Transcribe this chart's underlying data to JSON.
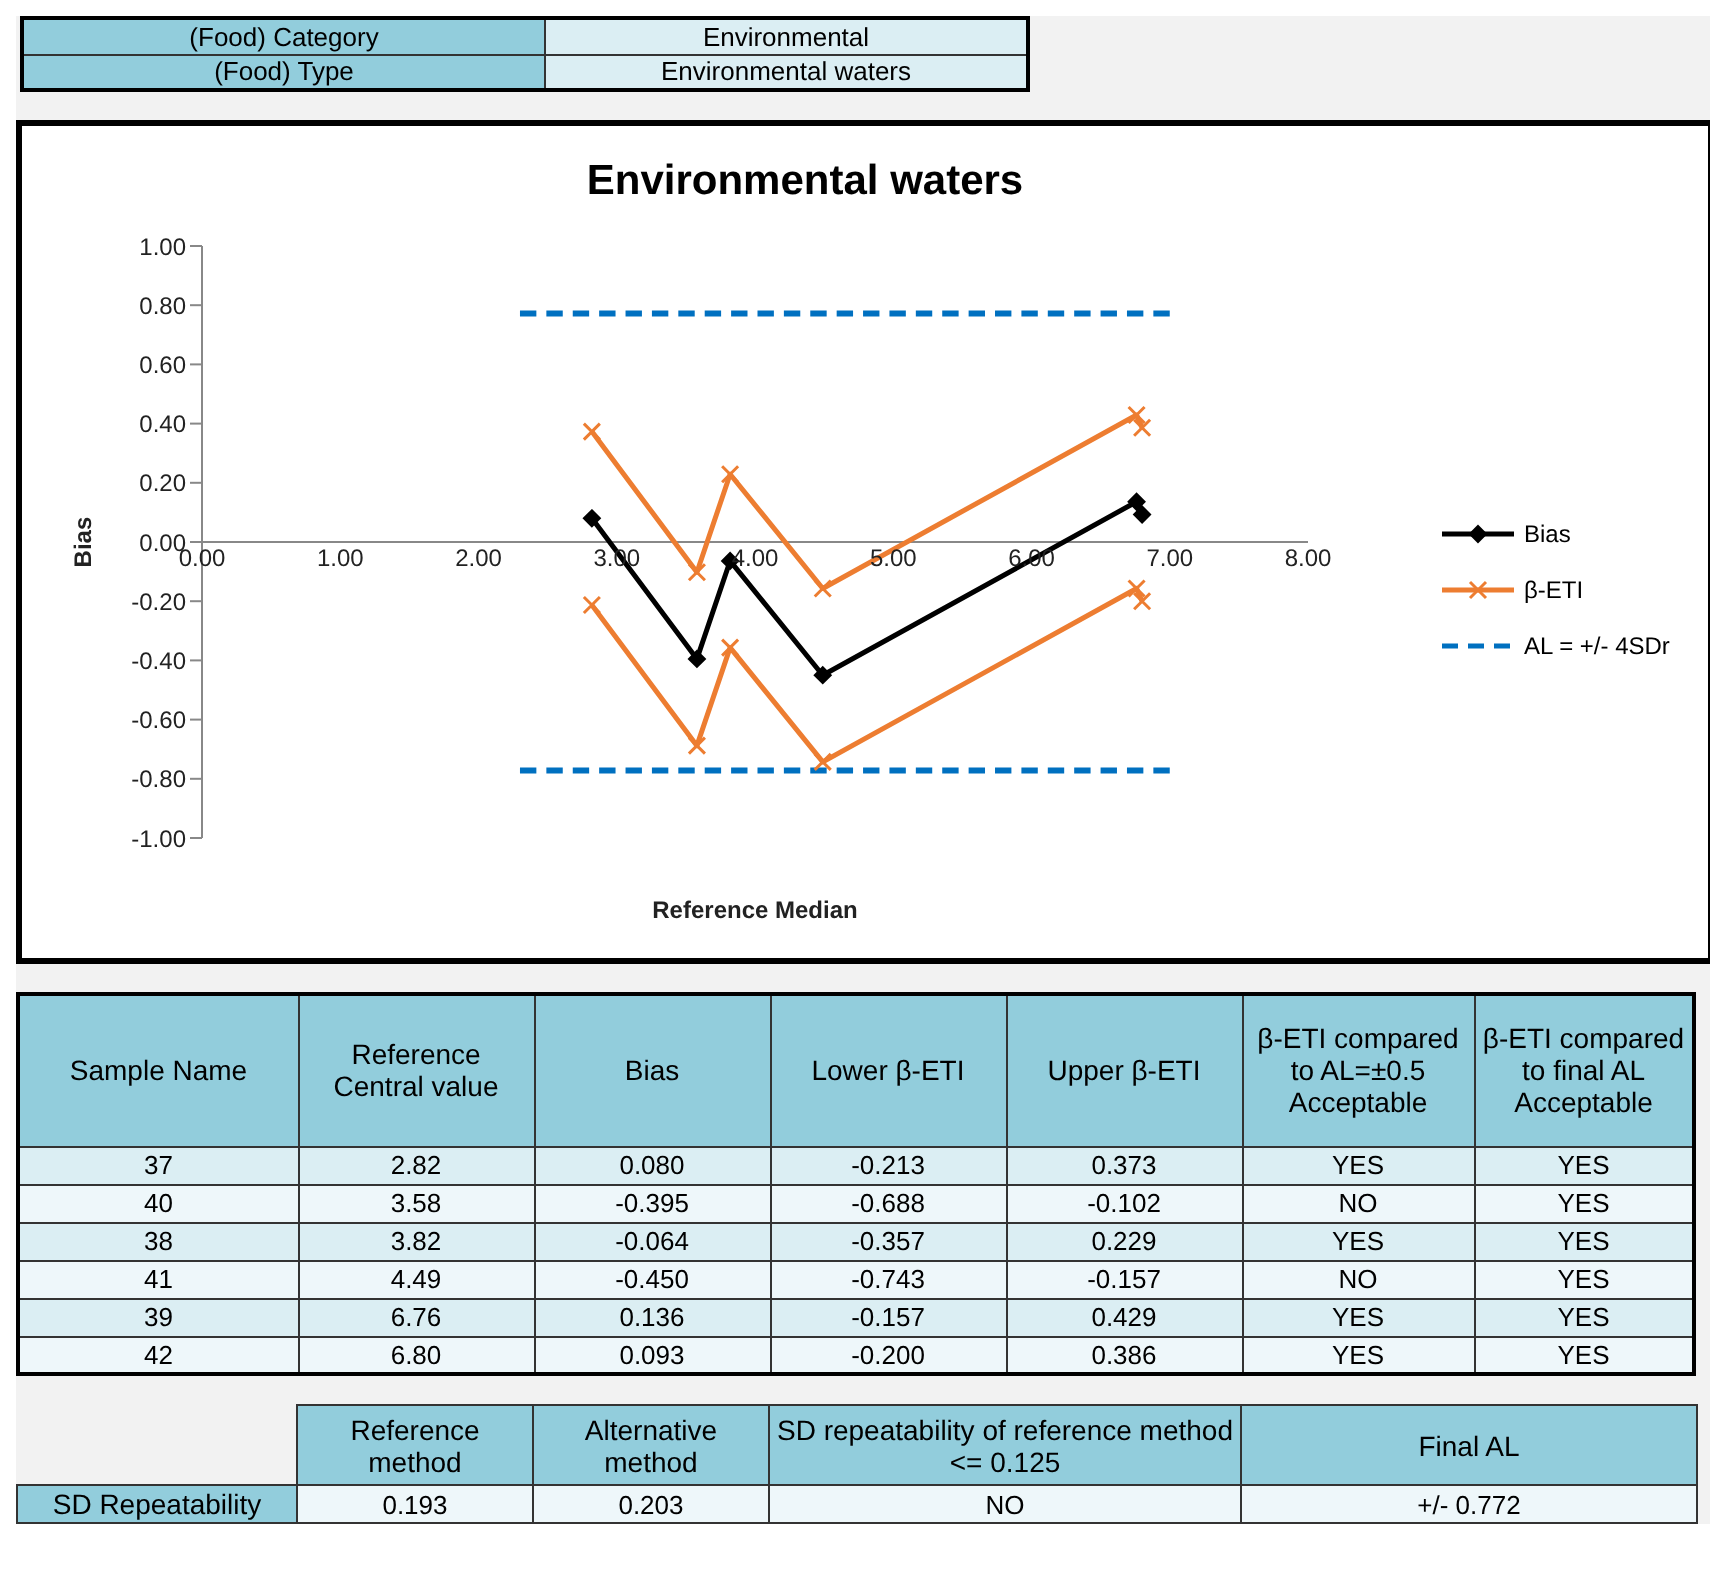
{
  "chart_data": {
    "type": "line",
    "title": "Environmental waters",
    "xlabel": "Reference Median",
    "ylabel": "Bias",
    "xlim": [
      0,
      8
    ],
    "xticks": [
      {
        "value": 0,
        "label": "0.00"
      },
      {
        "value": 1,
        "label": "1.00"
      },
      {
        "value": 2,
        "label": "2.00"
      },
      {
        "value": 3,
        "label": "3.00"
      },
      {
        "value": 4,
        "label": "4.00"
      },
      {
        "value": 5,
        "label": "5.00"
      },
      {
        "value": 6,
        "label": "6.00"
      },
      {
        "value": 7,
        "label": "7.00"
      },
      {
        "value": 8,
        "label": "8.00"
      }
    ],
    "ylim": [
      -1,
      1
    ],
    "yticks": [
      {
        "value": -1,
        "label": "-1.00"
      },
      {
        "value": -0.8,
        "label": "-0.80"
      },
      {
        "value": -0.6,
        "label": "-0.60"
      },
      {
        "value": -0.4,
        "label": "-0.40"
      },
      {
        "value": -0.2,
        "label": "-0.20"
      },
      {
        "value": 0,
        "label": "0.00"
      },
      {
        "value": 0.2,
        "label": "0.20"
      },
      {
        "value": 0.4,
        "label": "0.40"
      },
      {
        "value": 0.6,
        "label": "0.60"
      },
      {
        "value": 0.8,
        "label": "0.80"
      },
      {
        "value": 1,
        "label": "1.00"
      }
    ],
    "legend": "right",
    "grid": false,
    "series": [
      {
        "name": "Bias",
        "color": "#000000",
        "marker": "diamond",
        "x": [
          2.82,
          3.58,
          3.82,
          4.49,
          6.76,
          6.8
        ],
        "values": [
          0.08,
          -0.395,
          -0.064,
          -0.45,
          0.136,
          0.093
        ]
      },
      {
        "name": "β-ETI",
        "color": "#ed7d31",
        "marker": "cross",
        "x": [
          2.82,
          3.58,
          3.82,
          4.49,
          6.76,
          6.8
        ],
        "values": [
          0.373,
          -0.102,
          0.229,
          -0.157,
          0.429,
          0.386
        ]
      },
      {
        "color": "#ed7d31",
        "marker": "cross",
        "x": [
          2.82,
          3.58,
          3.82,
          4.49,
          6.76,
          6.8
        ],
        "values": [
          -0.213,
          -0.688,
          -0.357,
          -0.743,
          -0.157,
          -0.2
        ]
      },
      {
        "name": "AL = +/- 4SDr",
        "color": "#0070c0",
        "marker": "none",
        "line_style": "dashed",
        "x": [
          2.3,
          7.0
        ],
        "values": [
          0.772,
          0.772
        ]
      },
      {
        "color": "#0070c0",
        "marker": "none",
        "line_style": "dashed",
        "x": [
          2.3,
          7.0
        ],
        "values": [
          -0.772,
          -0.772
        ]
      }
    ],
    "annotations": [
      "(Food) Category",
      "Environmental",
      "(Food) Type",
      "Environmental waters",
      "Sample Name",
      "Reference Central value",
      "Bias",
      "Lower β-ETI",
      "Upper β-ETI",
      "β-ETI  compared to AL=±0.5 Acceptable",
      "β-ETI  compared to final AL Acceptable",
      "37",
      "40",
      "38",
      "41",
      "39",
      "42",
      "2.82",
      "3.58",
      "3.82",
      "4.49",
      "6.76",
      "6.80",
      "YES",
      "NO",
      "YES",
      "NO",
      "YES",
      "YES",
      "YES",
      "YES",
      "YES",
      "YES",
      "YES",
      "YES",
      "Reference method",
      "Alternative method",
      "SD repeatability of reference method <= 0.125",
      "Final AL",
      "SD Repeatability",
      "0.193",
      "0.203",
      "NO",
      "+/- 0.772",
      "0.080",
      "-0.395",
      "-0.064",
      "-0.450",
      "0.136",
      "0.093",
      "-0.213",
      "-0.688",
      "-0.357",
      "-0.743",
      "-0.157",
      "-0.200",
      "0.373",
      "-0.102",
      "0.229",
      "-0.157",
      "0.429",
      "0.386"
    ]
  }
}
